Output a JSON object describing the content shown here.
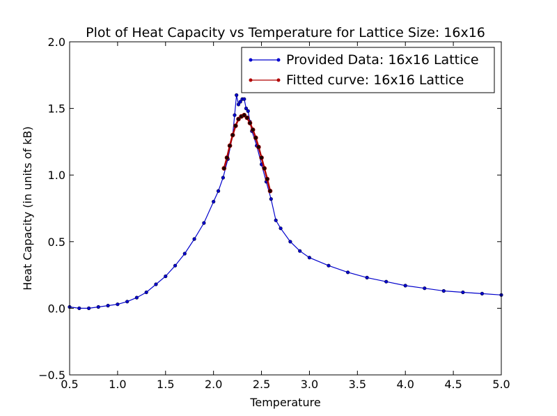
{
  "chart_data": {
    "type": "line",
    "title": "Plot of Heat Capacity vs Temperature for Lattice Size: 16x16",
    "xlabel": "Temperature",
    "ylabel": "Heat Capacity (in units of kB)",
    "xlim": [
      0.5,
      5.0
    ],
    "ylim": [
      -0.5,
      2.0
    ],
    "xticks": [
      "0.5",
      "1.0",
      "1.5",
      "2.0",
      "2.5",
      "3.0",
      "3.5",
      "4.0",
      "4.5",
      "5.0"
    ],
    "yticks": [
      "−0.5",
      "0.0",
      "0.5",
      "1.0",
      "1.5",
      "2.0"
    ],
    "grid": false,
    "legend_position": "top-right",
    "series": [
      {
        "name": "Provided Data: 16x16 Lattice",
        "color": "#0000cc",
        "marker": "dot",
        "x": [
          0.5,
          0.6,
          0.7,
          0.8,
          0.9,
          1.0,
          1.1,
          1.2,
          1.3,
          1.4,
          1.5,
          1.6,
          1.7,
          1.8,
          1.9,
          2.0,
          2.05,
          2.1,
          2.15,
          2.2,
          2.22,
          2.24,
          2.26,
          2.28,
          2.3,
          2.32,
          2.34,
          2.36,
          2.38,
          2.4,
          2.45,
          2.5,
          2.55,
          2.6,
          2.65,
          2.7,
          2.8,
          2.9,
          3.0,
          3.2,
          3.4,
          3.6,
          3.8,
          4.0,
          4.2,
          4.4,
          4.6,
          4.8,
          5.0
        ],
        "y": [
          0.01,
          0.0,
          0.0,
          0.01,
          0.02,
          0.03,
          0.05,
          0.08,
          0.12,
          0.18,
          0.24,
          0.32,
          0.41,
          0.52,
          0.64,
          0.8,
          0.88,
          0.98,
          1.12,
          1.3,
          1.45,
          1.6,
          1.53,
          1.55,
          1.57,
          1.57,
          1.5,
          1.48,
          1.4,
          1.33,
          1.22,
          1.08,
          0.95,
          0.82,
          0.66,
          0.6,
          0.5,
          0.43,
          0.38,
          0.32,
          0.27,
          0.23,
          0.2,
          0.17,
          0.15,
          0.13,
          0.12,
          0.11,
          0.1
        ]
      },
      {
        "name": "Fitted curve: 16x16 Lattice",
        "color": "#b00000",
        "marker": "dot",
        "x": [
          2.11,
          2.14,
          2.17,
          2.2,
          2.23,
          2.26,
          2.29,
          2.32,
          2.35,
          2.38,
          2.41,
          2.44,
          2.47,
          2.5,
          2.53,
          2.56,
          2.59
        ],
        "y": [
          1.05,
          1.13,
          1.22,
          1.3,
          1.37,
          1.42,
          1.44,
          1.45,
          1.43,
          1.39,
          1.34,
          1.28,
          1.21,
          1.13,
          1.05,
          0.97,
          0.88
        ]
      }
    ]
  }
}
